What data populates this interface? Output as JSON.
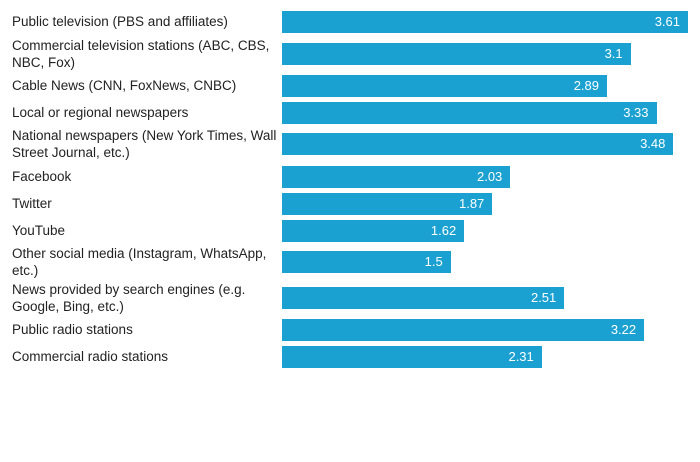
{
  "chart_data": {
    "type": "bar",
    "orientation": "horizontal",
    "categories": [
      "Public television (PBS and affiliates)",
      "Commercial television stations (ABC, CBS, NBC, Fox)",
      "Cable News (CNN, FoxNews, CNBC)",
      "Local or regional newspapers",
      "National newspapers (New York Times, Wall Street Journal, etc.)",
      "Facebook",
      "Twitter",
      "YouTube",
      "Other social media (Instagram, WhatsApp, etc.)",
      "News provided by search engines (e.g. Google, Bing, etc.)",
      "Public radio stations",
      "Commercial radio stations"
    ],
    "values": [
      3.61,
      3.1,
      2.89,
      3.33,
      3.48,
      2.03,
      1.87,
      1.62,
      1.5,
      2.51,
      3.22,
      2.31
    ],
    "value_labels": [
      "3.61",
      "3.1",
      "2.89",
      "3.33",
      "3.48",
      "2.03",
      "1.87",
      "1.62",
      "1.5",
      "2.51",
      "3.22",
      "2.31"
    ],
    "xlim": [
      0,
      3.61
    ],
    "grid": false,
    "color": "#1ba1d1"
  }
}
